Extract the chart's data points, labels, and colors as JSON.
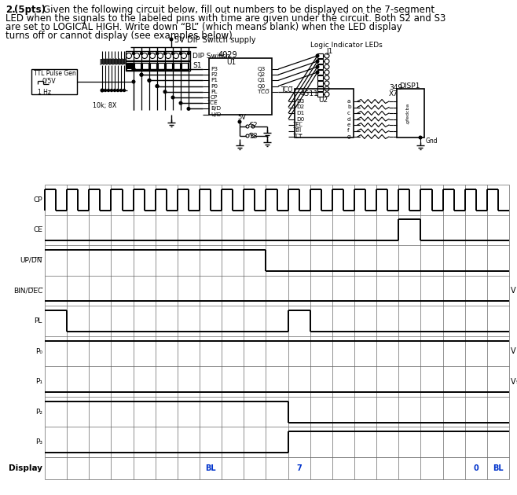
{
  "bg_color": "#ffffff",
  "title_line1_num": "2.",
  "title_line1_pts": "(5pts)",
  "title_line1_rest": "Given the following circuit below, fill out numbers to be displayed on the 7-segment",
  "title_line2": "LED when the signals to the labeled pins with time are given under the circuit. Both S2 and S3",
  "title_line3": "are set to LOGICAL HIGH. Write down “BL” (which means blank) when the LED display",
  "title_line4": "turns off or cannot display (see examples below).",
  "display_values": [
    "",
    "",
    "",
    "",
    "",
    "",
    "",
    "BL",
    "",
    "",
    "",
    "7",
    "",
    "",
    "",
    "",
    "",
    "",
    "",
    "0",
    "BL"
  ],
  "display_value_colors": [
    "k",
    "k",
    "k",
    "k",
    "k",
    "k",
    "k",
    "#0033cc",
    "k",
    "k",
    "k",
    "#0033cc",
    "k",
    "k",
    "k",
    "k",
    "k",
    "k",
    "k",
    "#0033cc",
    "#0033cc"
  ],
  "grid_cols": 21
}
